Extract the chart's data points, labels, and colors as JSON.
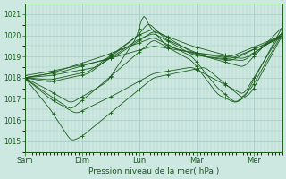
{
  "background_color": "#cce8e0",
  "line_color": "#1a5c1a",
  "grid_color": "#a8ccc4",
  "axis_label": "Pression niveau de la mer( hPa )",
  "ylim": [
    1014.5,
    1021.5
  ],
  "yticks": [
    1015,
    1016,
    1017,
    1018,
    1019,
    1020,
    1021
  ],
  "xtick_labels": [
    "Sam",
    "Dim",
    "Lun",
    "Mar",
    "Mer"
  ],
  "xtick_positions": [
    0,
    48,
    96,
    144,
    192
  ],
  "total_hours": 216,
  "n_points": 109
}
